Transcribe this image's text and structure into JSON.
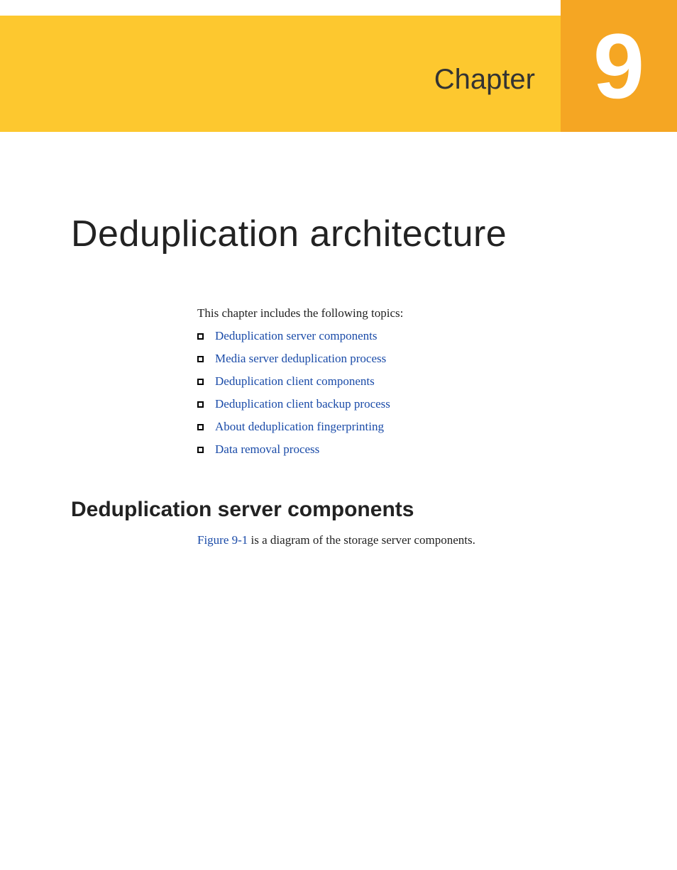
{
  "colors": {
    "banner_bg": "#fdc82f",
    "chapter_box_bg": "#f5a623",
    "chapter_number_color": "#ffffff",
    "link_color": "#1a4ba8",
    "text_color": "#222222",
    "page_bg": "#ffffff"
  },
  "header": {
    "chapter_label": "Chapter",
    "chapter_number": "9"
  },
  "title": "Deduplication architecture",
  "intro": "This chapter includes the following topics:",
  "topics": [
    "Deduplication server components",
    "Media server deduplication process",
    "Deduplication client components",
    "Deduplication client backup process",
    "About deduplication fingerprinting",
    "Data removal process"
  ],
  "section": {
    "heading": "Deduplication server components",
    "figure_ref": "Figure 9-1",
    "figure_desc": " is a diagram of the storage server components."
  },
  "typography": {
    "title_fontsize": 52,
    "chapter_label_fontsize": 40,
    "chapter_number_fontsize": 130,
    "body_fontsize": 17,
    "section_heading_fontsize": 30
  }
}
